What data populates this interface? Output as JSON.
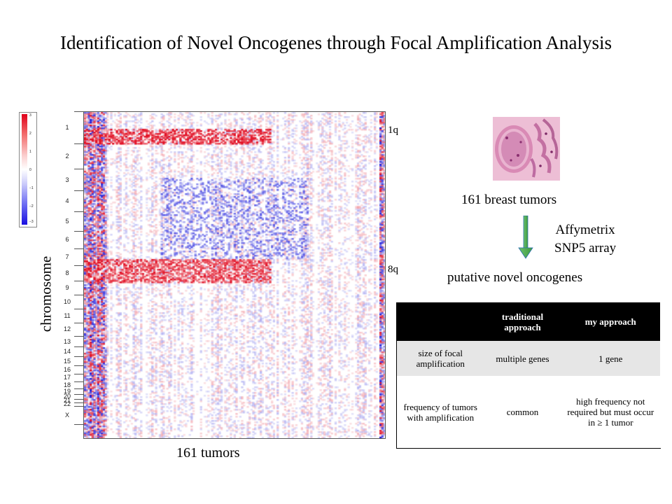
{
  "title": "Identification of Novel Oncogenes through Focal Amplification Analysis",
  "color_scale": {
    "ticks": [
      "3",
      "2",
      "1",
      "0",
      "−1",
      "−2",
      "−3"
    ],
    "colors": {
      "high": "#e0001a",
      "mid": "#ffffff",
      "low": "#1a10e0"
    }
  },
  "heatmap": {
    "y_axis_label": "chromosome",
    "x_axis_label": "161 tumors",
    "chromosomes": [
      "1",
      "2",
      "3",
      "4",
      "5",
      "6",
      "7",
      "8",
      "9",
      "10",
      "11",
      "12",
      "13",
      "14",
      "15",
      "16",
      "17",
      "18",
      "19",
      "20",
      "21",
      "22",
      "X"
    ],
    "region_labels": {
      "r1q": "1q",
      "r8q": "8q"
    }
  },
  "sample_label": "161 breast tumors",
  "platform_label": {
    "line1": "Affymetrix",
    "line2": "SNP5 array"
  },
  "result_label": "putative novel oncogenes",
  "comparison_table": {
    "headers": [
      "",
      "traditional approach",
      "my approach"
    ],
    "rows": [
      [
        "size of focal amplification",
        "multiple genes",
        "1 gene"
      ],
      [
        "frequency of tumors with amplification",
        "common",
        "high frequency not required but must occur in ≥ 1 tumor"
      ]
    ]
  }
}
